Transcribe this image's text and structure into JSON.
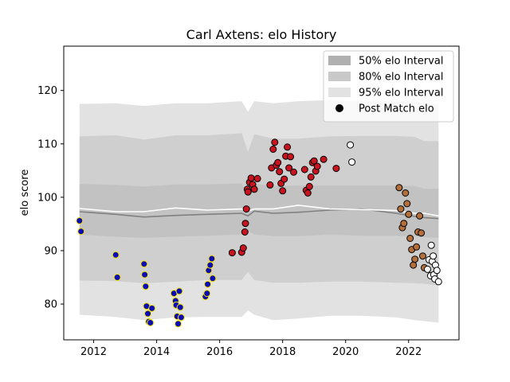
{
  "chart_data": {
    "type": "scatter",
    "title": "Carl Axtens: elo History",
    "xlabel": "",
    "ylabel": "elo score",
    "xlim": [
      2011.05,
      2023.6
    ],
    "ylim": [
      73.3,
      128.3
    ],
    "x_ticks": [
      2012,
      2014,
      2016,
      2018,
      2020,
      2022
    ],
    "y_ticks": [
      80,
      90,
      100,
      110,
      120
    ],
    "grid": false,
    "legend": {
      "placement": "top-right",
      "entries": [
        {
          "label": "50% elo Interval",
          "color": "#b0b0b0",
          "kind": "patch"
        },
        {
          "label": "80% elo Interval",
          "color": "#c9c9c9",
          "kind": "patch"
        },
        {
          "label": "95% elo Interval",
          "color": "#e2e2e2",
          "kind": "patch"
        },
        {
          "label": "Post Match elo",
          "color": "#000000",
          "kind": "marker"
        }
      ]
    },
    "bands": {
      "x": [
        2011.55,
        2012.7,
        2013.6,
        2014.6,
        2015.6,
        2016.7,
        2016.9,
        2017.1,
        2017.7,
        2018.5,
        2019.5,
        2020.5,
        2021.6,
        2022.2,
        2022.5,
        2022.95
      ],
      "ci95": {
        "upper": [
          117.5,
          117.6,
          117.1,
          117.6,
          117.6,
          118.0,
          116.0,
          118.0,
          117.6,
          118.0,
          118.2,
          118.0,
          118.0,
          118.0,
          117.5,
          117.5
        ],
        "lower": [
          78.0,
          77.6,
          77.0,
          77.5,
          77.6,
          77.6,
          78.8,
          78.0,
          77.0,
          77.3,
          77.8,
          77.8,
          77.5,
          77.0,
          76.8,
          76.5
        ]
      },
      "ci80": {
        "upper": [
          111.4,
          111.6,
          110.8,
          111.6,
          111.6,
          112.0,
          108.5,
          111.8,
          111.0,
          111.0,
          111.4,
          111.5,
          111.5,
          111.3,
          110.5,
          110.5
        ],
        "lower": [
          84.4,
          84.3,
          83.9,
          84.2,
          84.5,
          84.5,
          86.0,
          84.5,
          84.0,
          84.0,
          84.2,
          84.2,
          84.0,
          83.9,
          83.8,
          83.5
        ]
      },
      "ci50": {
        "upper": [
          102.5,
          102.3,
          102.0,
          102.4,
          102.4,
          102.6,
          100.3,
          102.5,
          102.1,
          102.2,
          102.2,
          102.2,
          102.2,
          102.1,
          101.6,
          101.6
        ],
        "lower": [
          93.0,
          92.6,
          92.4,
          92.6,
          92.8,
          93.0,
          93.7,
          93.0,
          92.7,
          92.7,
          93.0,
          92.8,
          92.8,
          92.6,
          92.5,
          92.4
        ]
      },
      "mean": [
        97.9,
        97.3,
        97.3,
        98.0,
        97.6,
        97.8,
        97.4,
        97.8,
        97.8,
        98.5,
        97.8,
        97.7,
        97.5,
        97.0,
        97.0,
        96.5
      ],
      "median": [
        97.3,
        96.8,
        96.3,
        96.6,
        96.8,
        97.0,
        96.5,
        97.4,
        97.0,
        97.2,
        97.6,
        97.8,
        97.0,
        96.4,
        96.2,
        96.0
      ]
    },
    "series": [
      {
        "fill": "#0c0cb6",
        "edge": "#f2e200",
        "points": [
          [
            2011.55,
            95.6
          ],
          [
            2011.6,
            93.6
          ],
          [
            2012.7,
            89.2
          ],
          [
            2012.75,
            85.0
          ],
          [
            2013.6,
            87.5
          ],
          [
            2013.62,
            85.5
          ],
          [
            2013.65,
            83.3
          ],
          [
            2013.68,
            79.6
          ],
          [
            2013.72,
            78.2
          ],
          [
            2013.75,
            76.7
          ],
          [
            2013.8,
            76.5
          ],
          [
            2013.85,
            79.2
          ],
          [
            2014.55,
            82.0
          ],
          [
            2014.6,
            80.6
          ],
          [
            2014.62,
            79.8
          ],
          [
            2014.65,
            77.7
          ],
          [
            2014.68,
            76.3
          ],
          [
            2014.72,
            82.4
          ],
          [
            2014.75,
            79.4
          ],
          [
            2014.78,
            77.5
          ],
          [
            2015.55,
            81.4
          ],
          [
            2015.6,
            82.0
          ],
          [
            2015.62,
            83.7
          ],
          [
            2015.65,
            86.3
          ],
          [
            2015.7,
            87.3
          ],
          [
            2015.75,
            88.5
          ],
          [
            2015.78,
            84.8
          ]
        ]
      },
      {
        "fill": "#c8141e",
        "edge": "#000000",
        "points": [
          [
            2016.4,
            89.6
          ],
          [
            2016.7,
            89.7
          ],
          [
            2016.75,
            90.5
          ],
          [
            2016.8,
            93.5
          ],
          [
            2016.82,
            95.1
          ],
          [
            2016.85,
            97.8
          ],
          [
            2016.88,
            101.5
          ],
          [
            2016.9,
            101.0
          ],
          [
            2016.95,
            102.8
          ],
          [
            2017.0,
            103.6
          ],
          [
            2017.05,
            102.4
          ],
          [
            2017.1,
            101.5
          ],
          [
            2017.2,
            103.5
          ],
          [
            2017.6,
            102.3
          ],
          [
            2017.65,
            105.5
          ],
          [
            2017.7,
            109.0
          ],
          [
            2017.75,
            110.3
          ],
          [
            2017.8,
            106.0
          ],
          [
            2017.85,
            106.5
          ],
          [
            2017.9,
            104.8
          ],
          [
            2017.95,
            102.6
          ],
          [
            2018.0,
            101.2
          ],
          [
            2018.05,
            103.4
          ],
          [
            2018.1,
            107.7
          ],
          [
            2018.15,
            109.4
          ],
          [
            2018.2,
            105.5
          ],
          [
            2018.25,
            107.6
          ],
          [
            2018.35,
            104.7
          ],
          [
            2018.7,
            105.2
          ],
          [
            2018.75,
            101.3
          ],
          [
            2018.8,
            100.8
          ],
          [
            2018.85,
            102.0
          ],
          [
            2018.9,
            103.8
          ],
          [
            2018.95,
            106.5
          ],
          [
            2019.0,
            106.8
          ],
          [
            2019.05,
            104.9
          ],
          [
            2019.1,
            105.8
          ],
          [
            2019.3,
            107.1
          ],
          [
            2019.7,
            105.4
          ]
        ]
      },
      {
        "fill": "#ffffff",
        "edge": "#000000",
        "points": [
          [
            2020.15,
            109.8
          ],
          [
            2020.2,
            106.6
          ]
        ]
      },
      {
        "fill": "#b4703c",
        "edge": "#000000",
        "points": [
          [
            2021.7,
            101.8
          ],
          [
            2021.75,
            97.8
          ],
          [
            2021.8,
            94.3
          ],
          [
            2021.85,
            95.1
          ],
          [
            2021.9,
            100.8
          ],
          [
            2021.95,
            98.8
          ],
          [
            2022.0,
            96.8
          ],
          [
            2022.05,
            92.3
          ],
          [
            2022.1,
            90.2
          ],
          [
            2022.15,
            87.3
          ],
          [
            2022.2,
            88.4
          ],
          [
            2022.25,
            90.7
          ],
          [
            2022.3,
            93.5
          ],
          [
            2022.35,
            96.5
          ],
          [
            2022.4,
            93.3
          ],
          [
            2022.45,
            89.0
          ],
          [
            2022.5,
            86.8
          ]
        ]
      },
      {
        "fill": "#ffffff",
        "edge": "#000000",
        "points": [
          [
            2022.6,
            86.5
          ],
          [
            2022.65,
            88.3
          ],
          [
            2022.7,
            85.3
          ],
          [
            2022.72,
            91.0
          ],
          [
            2022.75,
            88.0
          ],
          [
            2022.78,
            89.0
          ],
          [
            2022.8,
            85.5
          ],
          [
            2022.83,
            84.7
          ],
          [
            2022.85,
            87.3
          ],
          [
            2022.9,
            86.3
          ],
          [
            2022.95,
            84.2
          ]
        ]
      }
    ]
  }
}
